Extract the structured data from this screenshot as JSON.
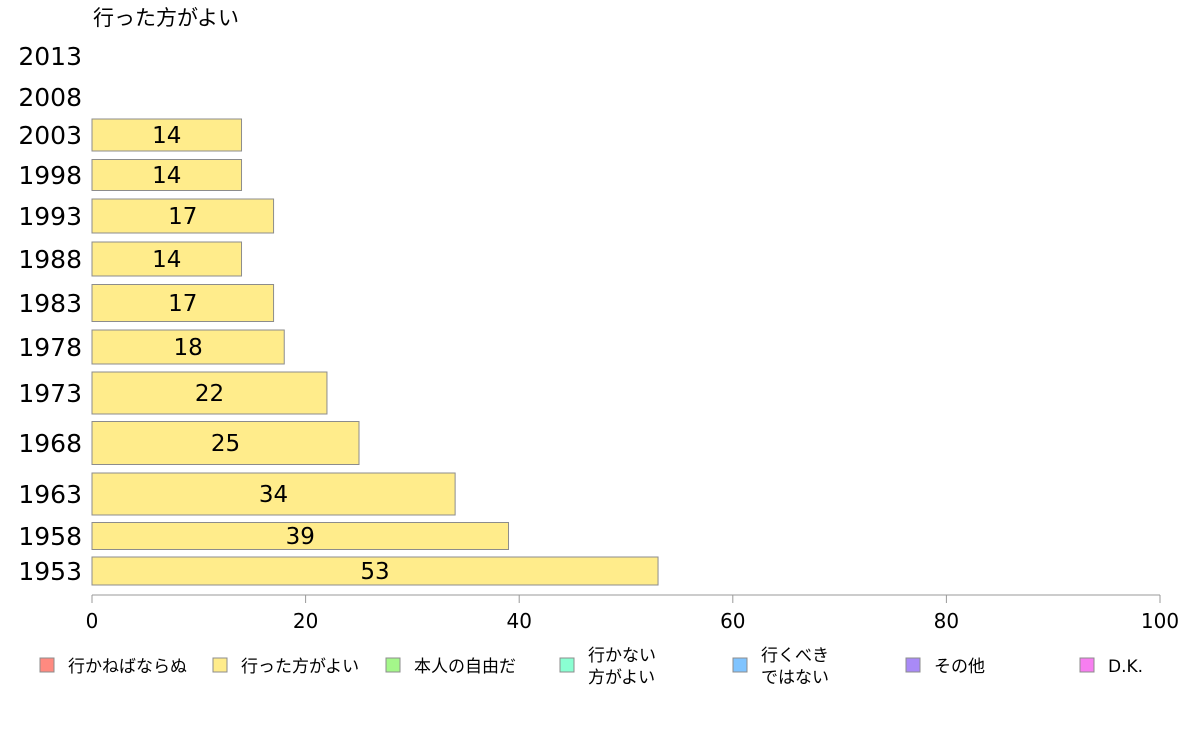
{
  "chart_data": {
    "type": "bar",
    "orientation": "horizontal",
    "title": "行った方がよい",
    "categories": [
      "2013",
      "2008",
      "2003",
      "1998",
      "1993",
      "1988",
      "1983",
      "1978",
      "1973",
      "1968",
      "1963",
      "1958",
      "1953"
    ],
    "series": [
      {
        "name": "行った方がよい",
        "color": "#ffec8b",
        "values": [
          null,
          null,
          14,
          14,
          17,
          14,
          17,
          18,
          22,
          25,
          34,
          39,
          53
        ]
      }
    ],
    "data_labels": [
      "",
      "",
      "14",
      "14",
      "17",
      "14",
      "17",
      "18",
      "22",
      "25",
      "34",
      "39",
      "53"
    ],
    "xlim": [
      0,
      100
    ],
    "x_ticks": [
      "0",
      "20",
      "40",
      "60",
      "80",
      "100"
    ],
    "xlabel": "",
    "ylabel": "",
    "grid": false,
    "legend_position": "bottom",
    "legend": [
      {
        "lines": [
          "行かねばならぬ"
        ],
        "color": "#ff8a80"
      },
      {
        "lines": [
          "行った方がよい"
        ],
        "color": "#ffec8b"
      },
      {
        "lines": [
          "本人の自由だ"
        ],
        "color": "#a4f78a"
      },
      {
        "lines": [
          "行かない",
          "方がよい"
        ],
        "color": "#8affd2"
      },
      {
        "lines": [
          "行くべき",
          "ではない"
        ],
        "color": "#80c4ff"
      },
      {
        "lines": [
          "その他"
        ],
        "color": "#a98af7"
      },
      {
        "lines": [
          "D.K."
        ],
        "color": "#f77ef0"
      }
    ]
  }
}
